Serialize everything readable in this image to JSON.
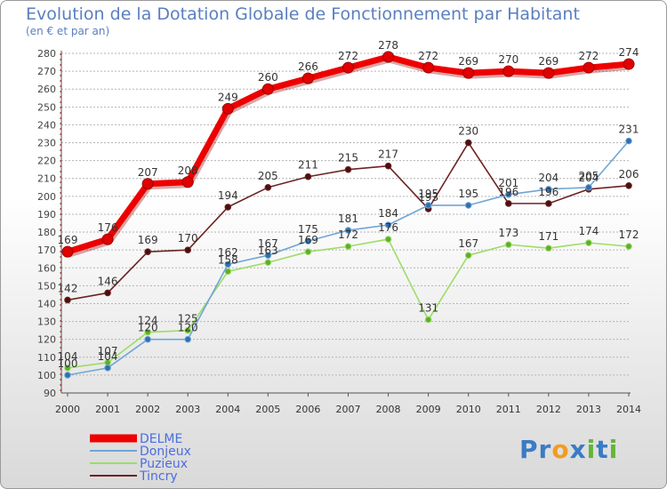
{
  "chart_data": {
    "type": "line",
    "title": "Evolution de la Dotation Globale de Fonctionnement par Habitant",
    "subtitle": "(en € et par an)",
    "categories": [
      "2000",
      "2001",
      "2002",
      "2003",
      "2004",
      "2005",
      "2006",
      "2007",
      "2008",
      "2009",
      "2010",
      "2011",
      "2012",
      "2013",
      "2014"
    ],
    "ylim": [
      90,
      280
    ],
    "yticks": [
      90,
      100,
      110,
      120,
      130,
      140,
      150,
      160,
      170,
      180,
      190,
      200,
      210,
      220,
      230,
      240,
      250,
      260,
      270,
      280
    ],
    "legend_position": "bottom-left",
    "series": [
      {
        "name": "DELME",
        "color": "#ee0000",
        "values": [
          169,
          176,
          207,
          208,
          249,
          260,
          266,
          272,
          278,
          272,
          269,
          270,
          269,
          272,
          274
        ]
      },
      {
        "name": "Donjeux",
        "color": "#6fa6d6",
        "values": [
          100,
          104,
          120,
          120,
          162,
          167,
          175,
          181,
          184,
          195,
          195,
          201,
          204,
          205,
          231
        ]
      },
      {
        "name": "Puzieux",
        "color": "#9cdd66",
        "values": [
          104,
          107,
          124,
          125,
          158,
          163,
          169,
          172,
          176,
          131,
          167,
          173,
          171,
          174,
          172
        ]
      },
      {
        "name": "Tincry",
        "color": "#6e2323",
        "values": [
          142,
          146,
          169,
          170,
          194,
          205,
          211,
          215,
          217,
          193,
          230,
          196,
          196,
          204,
          206
        ]
      }
    ]
  },
  "logo": {
    "text": "Proxiti",
    "letters": [
      "P",
      "r",
      "o",
      "x",
      "i",
      "t",
      "i"
    ],
    "colors": [
      "#3a7cc5",
      "#3a7cc5",
      "#f29c1f",
      "#3a7cc5",
      "#62b636",
      "#3a7cc5",
      "#62b636"
    ]
  }
}
